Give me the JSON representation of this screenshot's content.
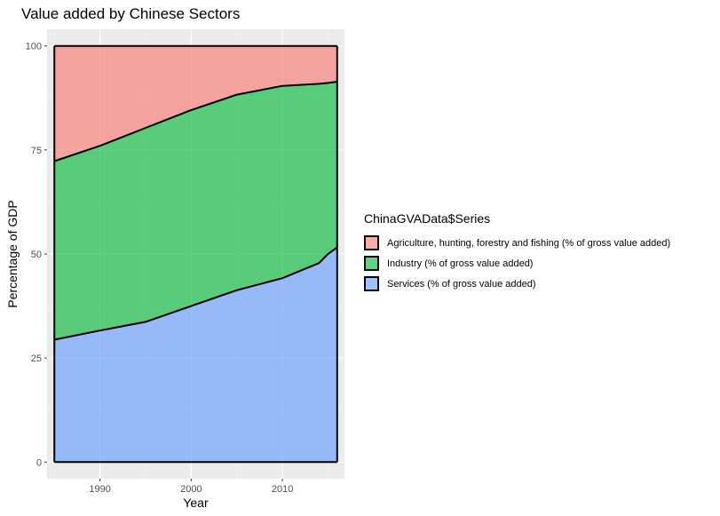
{
  "chart_data": {
    "type": "area",
    "stacked": true,
    "title": "Value added by Chinese Sectors",
    "xlabel": "Year",
    "ylabel": "Percentage of GDP",
    "xlim": [
      1984.2,
      2016.8
    ],
    "ylim": [
      -4,
      104
    ],
    "x_ticks": [
      1990,
      2000,
      2010
    ],
    "y_ticks": [
      0,
      25,
      50,
      75,
      100
    ],
    "grid": true,
    "legend": {
      "title": "ChinaGVAData$Series",
      "placement": "right"
    },
    "x": [
      1985,
      1990,
      1995,
      2000,
      2005,
      2010,
      2014,
      2015,
      2016
    ],
    "series": [
      {
        "name": "Services (% of gross value added)",
        "color": "#619CFF",
        "values": [
          29.4,
          31.6,
          33.7,
          37.5,
          41.3,
          44.2,
          47.8,
          50.0,
          51.6
        ]
      },
      {
        "name": "Industry (% of gross value added)",
        "color": "#00BA38",
        "values": [
          42.9,
          44.4,
          46.6,
          47.1,
          47.0,
          46.2,
          43.1,
          41.1,
          39.8
        ]
      },
      {
        "name": "Agriculture, hunting, forestry and fishing (% of gross value added)",
        "color": "#F8766D",
        "values": [
          27.7,
          24.0,
          19.7,
          15.4,
          11.7,
          9.6,
          9.1,
          8.9,
          8.6
        ]
      }
    ]
  }
}
